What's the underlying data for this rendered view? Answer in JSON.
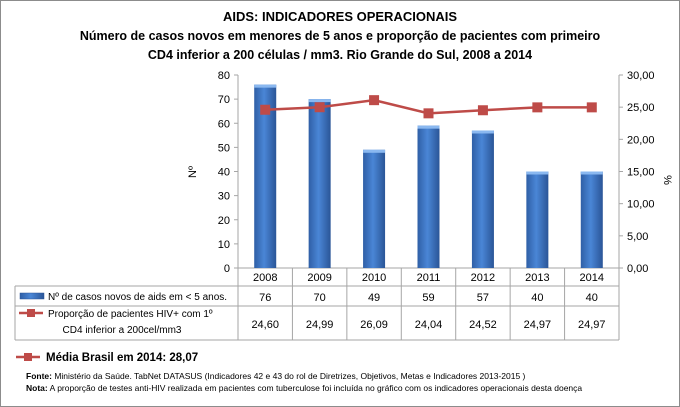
{
  "chart_data": {
    "type": "bar+line",
    "title": "AIDS: INDICADORES OPERACIONAIS",
    "subtitle": [
      "Número de casos novos em menores de 5 anos e proporção de pacientes com primeiro",
      "CD4 inferior a 200 células / mm3. Rio Grande do Sul, 2008 a 2014"
    ],
    "categories": [
      "2008",
      "2009",
      "2010",
      "2011",
      "2012",
      "2013",
      "2014"
    ],
    "ylabel_left": "Nº",
    "ylabel_right": "%",
    "ylim_left": [
      0,
      80
    ],
    "yticks_left": [
      "0",
      "10",
      "20",
      "30",
      "40",
      "50",
      "60",
      "70",
      "80"
    ],
    "ylim_right": [
      0,
      30
    ],
    "yticks_right": [
      "0,00",
      "5,00",
      "10,00",
      "15,00",
      "20,00",
      "25,00",
      "30,00"
    ],
    "grid": false,
    "series": [
      {
        "name": "Nº de casos novos de aids em < 5 anos.",
        "type": "bar",
        "axis": "left",
        "color": "#3a73c4",
        "values": [
          76,
          70,
          49,
          59,
          57,
          40,
          40
        ],
        "labels": [
          "76",
          "70",
          "49",
          "59",
          "57",
          "40",
          "40"
        ]
      },
      {
        "name": "Proporção de pacientes HIV+ com 1º CD4 inferior a 200cel/mm3",
        "name_lines": [
          "Proporção de pacientes HIV+ com 1º",
          "CD4 inferior a 200cel/mm3"
        ],
        "type": "line",
        "axis": "right",
        "color": "#be4b48",
        "values": [
          24.6,
          24.99,
          26.09,
          24.04,
          24.52,
          24.97,
          24.97
        ],
        "labels": [
          "24,60",
          "24,99",
          "26,09",
          "24,04",
          "24,52",
          "24,97",
          "24,97"
        ]
      }
    ],
    "legend": "data-table"
  },
  "footer": {
    "brasil_label": "Média Brasil em 2014: 28,07",
    "fonte_label": "Fonte:",
    "fonte_text": " Ministério da Saúde. TabNet DATASUS (Indicadores 42 e 43 do rol de Diretrizes, Objetivos, Metas e Indicadores 2013-2015 )",
    "nota_label": "Nota:",
    "nota_text": " A proporção de testes anti-HIV realizada em pacientes com tuberculose foi incluída no gráfico com os indicadores operacionais desta doença"
  }
}
